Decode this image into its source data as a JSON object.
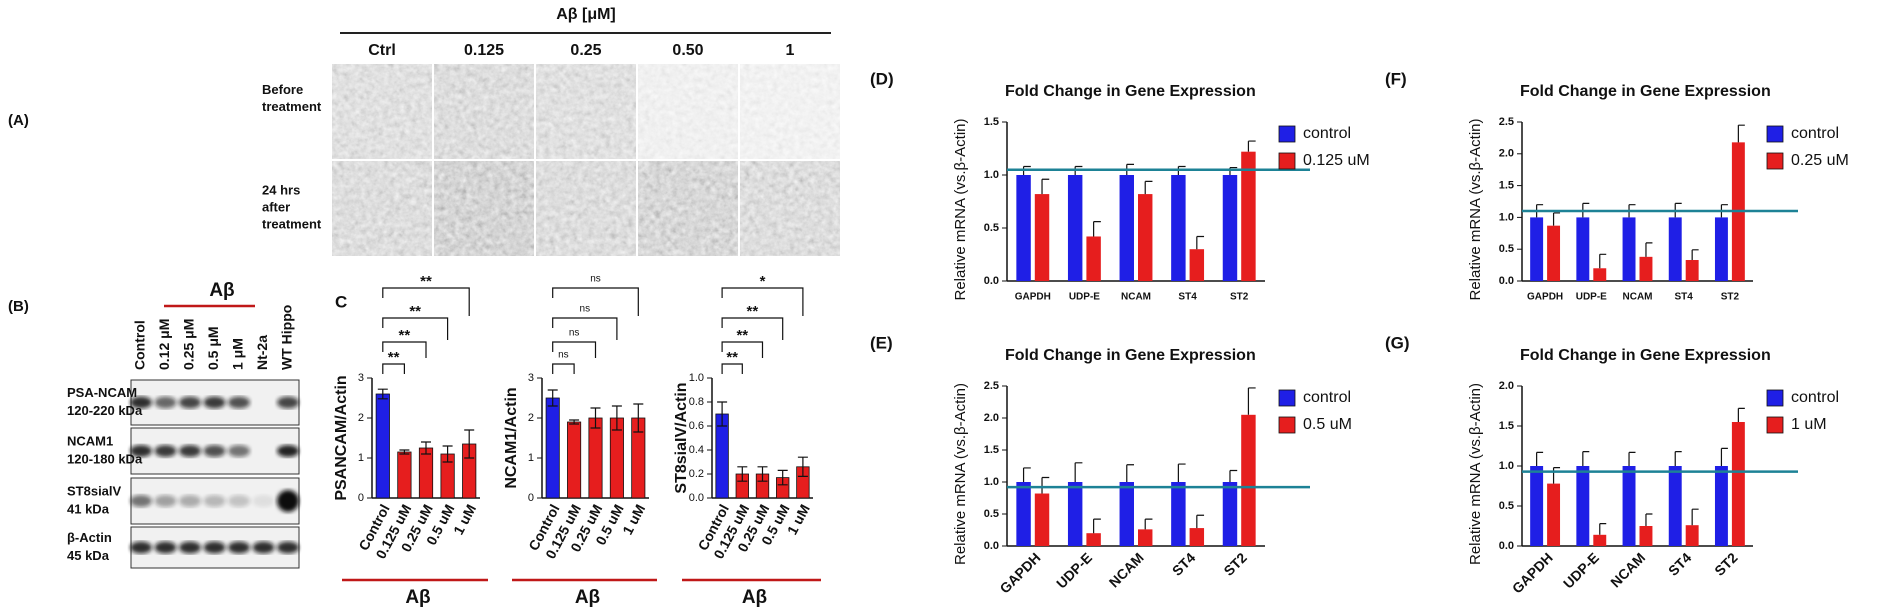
{
  "panel_a": {
    "label": "(A)",
    "header": "Aβ [μM]",
    "columns": [
      "Ctrl",
      "0.125",
      "0.25",
      "0.50",
      "1"
    ],
    "rows": [
      [
        "Before",
        "treatment"
      ],
      [
        "24 hrs",
        "after",
        "treatment"
      ]
    ]
  },
  "panel_b": {
    "label": "(B)",
    "group": "Aβ",
    "lanes": [
      "Control",
      "0.12 μM",
      "0.25 μM",
      "0.5 μM",
      "1 μM",
      "Nt-2a",
      "WT Hippo"
    ],
    "bands": [
      {
        "name": "PSA-NCAM",
        "size": "120-220 kDa"
      },
      {
        "name": "NCAM1",
        "size": "120-180 kDa"
      },
      {
        "name": "ST8sialV",
        "size": "41 kDa"
      },
      {
        "name": "β-Actin",
        "size": "45 kDa"
      }
    ]
  },
  "panel_c": {
    "label": "C"
  },
  "chart_data": [
    {
      "type": "bar",
      "ylabel": "PSANCAM/Actin",
      "categories": [
        "Control",
        "0.125 uM",
        "0.25 uM",
        "0.5 uM",
        "1 uM"
      ],
      "values": [
        2.6,
        1.15,
        1.25,
        1.1,
        1.35
      ],
      "errors": [
        0.12,
        0.05,
        0.15,
        0.2,
        0.35
      ],
      "colors": [
        "#1f1fe6",
        "#e61e1e",
        "#e61e1e",
        "#e61e1e",
        "#e61e1e"
      ],
      "ylim": [
        0,
        3
      ],
      "yticks": [
        0,
        1,
        2,
        3
      ],
      "significance": [
        "**",
        "**",
        "**",
        "**"
      ],
      "group_label": "Aβ"
    },
    {
      "type": "bar",
      "ylabel": "NCAM1/Actin",
      "categories": [
        "Control",
        "0.125 uM",
        "0.25 uM",
        "0.5 uM",
        "1 uM"
      ],
      "values": [
        2.5,
        1.9,
        2.0,
        2.0,
        2.0
      ],
      "errors": [
        0.2,
        0.05,
        0.25,
        0.3,
        0.35
      ],
      "colors": [
        "#1f1fe6",
        "#e61e1e",
        "#e61e1e",
        "#e61e1e",
        "#e61e1e"
      ],
      "ylim": [
        0,
        3
      ],
      "yticks": [
        0,
        1,
        2,
        3
      ],
      "significance": [
        "ns",
        "ns",
        "ns",
        "ns"
      ],
      "group_label": "Aβ"
    },
    {
      "type": "bar",
      "ylabel": "ST8siaIV/Actin",
      "categories": [
        "Control",
        "0.125 uM",
        "0.25 uM",
        "0.5 uM",
        "1 uM"
      ],
      "values": [
        0.7,
        0.2,
        0.2,
        0.17,
        0.26
      ],
      "errors": [
        0.1,
        0.06,
        0.06,
        0.06,
        0.08
      ],
      "colors": [
        "#1f1fe6",
        "#e61e1e",
        "#e61e1e",
        "#e61e1e",
        "#e61e1e"
      ],
      "ylim": [
        0,
        1.0
      ],
      "yticks": [
        {
          "value": 0,
          "label": "0.0"
        },
        0.2,
        0.4,
        0.6,
        0.8,
        {
          "value": 1.0,
          "label": "1.0"
        }
      ],
      "significance": [
        "**",
        "**",
        "**",
        "*"
      ],
      "group_label": "Aβ"
    },
    {
      "type": "grouped_bar",
      "panel": "(D)",
      "title": "Fold Change in Gene Expression",
      "ylabel": "Relative mRNA (vs.β-Actin)",
      "categories": [
        "GAPDH",
        "UDP-E",
        "NCAM",
        "ST4",
        "ST2"
      ],
      "series": [
        {
          "name": "control",
          "color": "#1f1fe6",
          "values": [
            1.0,
            1.0,
            1.0,
            1.0,
            1.0
          ],
          "errors": [
            0.08,
            0.08,
            0.1,
            0.08,
            0.07
          ]
        },
        {
          "name": "0.125 uM",
          "color": "#e61e1e",
          "values": [
            0.82,
            0.42,
            0.82,
            0.3,
            1.22
          ],
          "errors": [
            0.14,
            0.14,
            0.12,
            0.12,
            0.1
          ]
        }
      ],
      "ylim": [
        0,
        1.5
      ],
      "yticks": [
        {
          "value": 0,
          "label": "0.0"
        },
        0.5,
        {
          "value": 1.0,
          "label": "1.0"
        },
        1.5
      ],
      "reference_line": 1.05,
      "reference_color": "#1d8296"
    },
    {
      "type": "grouped_bar",
      "panel": "(E)",
      "title": "Fold Change in Gene Expression",
      "ylabel": "Relative mRNA (vs.β-Actin)",
      "categories": [
        "GAPDH",
        "UDP-E",
        "NCAM",
        "ST4",
        "ST2"
      ],
      "series": [
        {
          "name": "control",
          "color": "#1f1fe6",
          "values": [
            1.0,
            1.0,
            1.0,
            1.0,
            1.0
          ],
          "errors": [
            0.22,
            0.3,
            0.27,
            0.28,
            0.18
          ]
        },
        {
          "name": "0.5 uM",
          "color": "#e61e1e",
          "values": [
            0.82,
            0.2,
            0.26,
            0.28,
            2.05
          ],
          "errors": [
            0.25,
            0.22,
            0.16,
            0.2,
            0.42
          ]
        }
      ],
      "ylim": [
        0,
        2.5
      ],
      "yticks": [
        {
          "value": 0,
          "label": "0.0"
        },
        0.5,
        {
          "value": 1.0,
          "label": "1.0"
        },
        1.5,
        {
          "value": 2.0,
          "label": "2.0"
        },
        2.5
      ],
      "reference_line": 0.92,
      "reference_color": "#1d8296"
    },
    {
      "type": "grouped_bar",
      "panel": "(F)",
      "title": "Fold Change in Gene Expression",
      "ylabel": "Relative mRNA (vs.β-Actin)",
      "categories": [
        "GAPDH",
        "UDP-E",
        "NCAM",
        "ST4",
        "ST2"
      ],
      "series": [
        {
          "name": "control",
          "color": "#1f1fe6",
          "values": [
            1.0,
            1.0,
            1.0,
            1.0,
            1.0
          ],
          "errors": [
            0.2,
            0.22,
            0.2,
            0.22,
            0.2
          ]
        },
        {
          "name": "0.25 uM",
          "color": "#e61e1e",
          "values": [
            0.87,
            0.2,
            0.38,
            0.33,
            2.18
          ],
          "errors": [
            0.2,
            0.22,
            0.22,
            0.16,
            0.27
          ]
        }
      ],
      "ylim": [
        0,
        2.5
      ],
      "yticks": [
        {
          "value": 0,
          "label": "0.0"
        },
        0.5,
        {
          "value": 1.0,
          "label": "1.0"
        },
        1.5,
        {
          "value": 2.0,
          "label": "2.0"
        },
        2.5
      ],
      "reference_line": 1.1,
      "reference_color": "#1d8296"
    },
    {
      "type": "grouped_bar",
      "panel": "(G)",
      "title": "Fold Change in Gene Expression",
      "ylabel": "Relative mRNA (vs.β-Actin)",
      "categories": [
        "GAPDH",
        "UDP-E",
        "NCAM",
        "ST4",
        "ST2"
      ],
      "series": [
        {
          "name": "control",
          "color": "#1f1fe6",
          "values": [
            1.0,
            1.0,
            1.0,
            1.0,
            1.0
          ],
          "errors": [
            0.17,
            0.18,
            0.17,
            0.18,
            0.22
          ]
        },
        {
          "name": "1 uM",
          "color": "#e61e1e",
          "values": [
            0.78,
            0.14,
            0.25,
            0.26,
            1.55
          ],
          "errors": [
            0.2,
            0.14,
            0.15,
            0.2,
            0.17
          ]
        }
      ],
      "ylim": [
        0,
        2.0
      ],
      "yticks": [
        {
          "value": 0,
          "label": "0.0"
        },
        0.5,
        {
          "value": 1.0,
          "label": "1.0"
        },
        1.5,
        {
          "value": 2.0,
          "label": "2.0"
        }
      ],
      "reference_line": 0.93,
      "reference_color": "#1d8296"
    }
  ]
}
